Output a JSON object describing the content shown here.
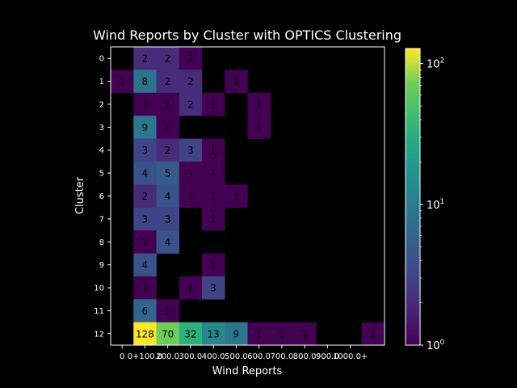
{
  "chart_data": {
    "type": "heatmap",
    "title": "Wind Reports by Cluster with OPTICS Clustering",
    "xlabel": "Wind Reports",
    "ylabel": "Cluster",
    "x_tick_labels": [
      "0",
      "0+100.0",
      "200.0",
      "300.0",
      "400.0",
      "500.0",
      "600.0",
      "700.0",
      "800.0",
      "900.0",
      "1000.0+"
    ],
    "y_tick_labels": [
      "0",
      "1",
      "2",
      "3",
      "4",
      "5",
      "6",
      "7",
      "8",
      "9",
      "10",
      "11",
      "12"
    ],
    "columns": 12,
    "values": [
      [
        null,
        2,
        2,
        1,
        null,
        null,
        null,
        null,
        null,
        null,
        null,
        null
      ],
      [
        1,
        8,
        2,
        2,
        null,
        1,
        null,
        null,
        null,
        null,
        null,
        null
      ],
      [
        null,
        1,
        1,
        2,
        1,
        null,
        1,
        null,
        null,
        null,
        null,
        null
      ],
      [
        null,
        9,
        1,
        null,
        null,
        null,
        1,
        null,
        null,
        null,
        null,
        null
      ],
      [
        null,
        3,
        2,
        3,
        1,
        null,
        null,
        null,
        null,
        null,
        null,
        null
      ],
      [
        null,
        4,
        5,
        1,
        1,
        null,
        null,
        null,
        null,
        null,
        null,
        null
      ],
      [
        null,
        2,
        4,
        1,
        1,
        1,
        null,
        null,
        null,
        null,
        null,
        null
      ],
      [
        null,
        3,
        3,
        null,
        1,
        null,
        null,
        null,
        null,
        null,
        null,
        null
      ],
      [
        null,
        1,
        4,
        null,
        null,
        null,
        null,
        null,
        null,
        null,
        null,
        null
      ],
      [
        null,
        4,
        null,
        null,
        1,
        null,
        null,
        null,
        null,
        null,
        null,
        null
      ],
      [
        null,
        1,
        null,
        1,
        3,
        null,
        null,
        null,
        null,
        null,
        null,
        null
      ],
      [
        null,
        6,
        1,
        null,
        null,
        null,
        null,
        null,
        null,
        null,
        null,
        null
      ],
      [
        null,
        128,
        70,
        32,
        13,
        9,
        1,
        1,
        1,
        null,
        null,
        1
      ]
    ],
    "colorbar": {
      "scale": "log",
      "range": [
        1,
        128
      ],
      "tick_labels": [
        {
          "base": "10",
          "exp": "0",
          "value": 1
        },
        {
          "base": "10",
          "exp": "1",
          "value": 10
        },
        {
          "base": "10",
          "exp": "2",
          "value": 100
        }
      ],
      "colormap": "viridis"
    },
    "grid": false,
    "background": "#000000",
    "foreground": "#ffffff"
  }
}
